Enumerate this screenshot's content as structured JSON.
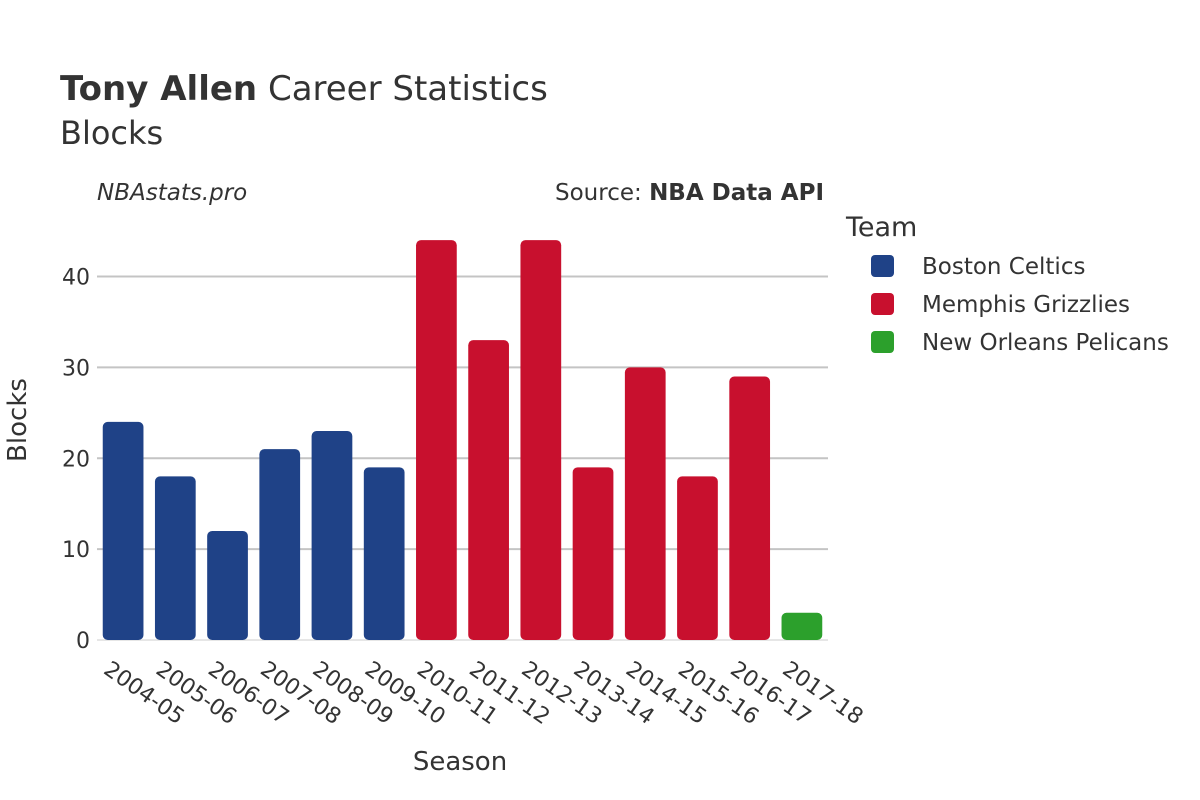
{
  "header": {
    "player": "Tony Allen",
    "title_rest": " Career Statistics",
    "subtitle": "Blocks",
    "site": "NBAstats.pro",
    "source_label": "Source: ",
    "source_value": "NBA Data API"
  },
  "legend": {
    "title": "Team",
    "items": [
      {
        "name": "Boston Celtics",
        "color": "#1f4287"
      },
      {
        "name": "Memphis Grizzlies",
        "color": "#c8102e"
      },
      {
        "name": "New Orleans Pelicans",
        "color": "#2ca02c"
      }
    ]
  },
  "chart_data": {
    "type": "bar",
    "xlabel": "Season",
    "ylabel": "Blocks",
    "ylim": [
      0,
      46
    ],
    "yticks": [
      0,
      10,
      20,
      30,
      40
    ],
    "grid": true,
    "legend_position": "right",
    "categories": [
      "2004-05",
      "2005-06",
      "2006-07",
      "2007-08",
      "2008-09",
      "2009-10",
      "2010-11",
      "2011-12",
      "2012-13",
      "2013-14",
      "2014-15",
      "2015-16",
      "2016-17",
      "2017-18"
    ],
    "values": [
      24,
      18,
      12,
      21,
      23,
      19,
      44,
      33,
      44,
      19,
      30,
      18,
      29,
      3
    ],
    "teams": [
      "Boston Celtics",
      "Boston Celtics",
      "Boston Celtics",
      "Boston Celtics",
      "Boston Celtics",
      "Boston Celtics",
      "Memphis Grizzlies",
      "Memphis Grizzlies",
      "Memphis Grizzlies",
      "Memphis Grizzlies",
      "Memphis Grizzlies",
      "Memphis Grizzlies",
      "Memphis Grizzlies",
      "New Orleans Pelicans"
    ]
  }
}
